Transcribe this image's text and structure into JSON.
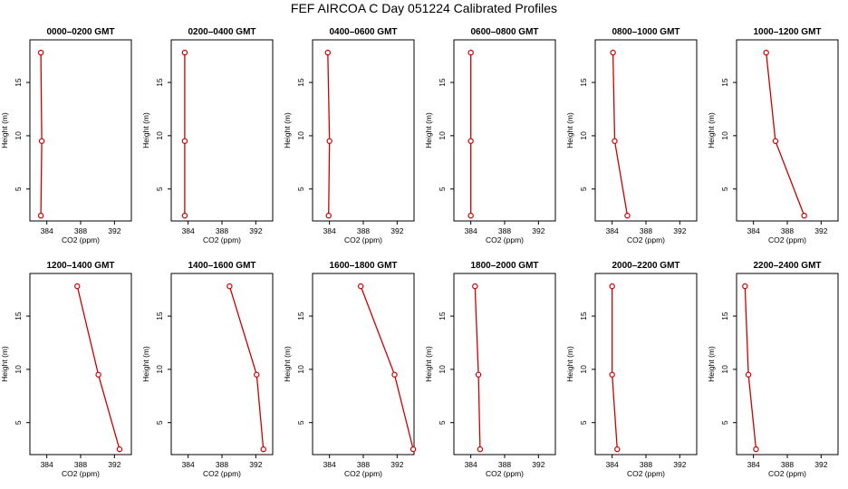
{
  "figure": {
    "title": "FEF AIRCOA C  Day 051224  Calibrated Profiles",
    "colors": {
      "line": "#cc0000",
      "marker": "#cc0000",
      "axis": "#000000"
    }
  },
  "chart_data": [
    {
      "type": "line",
      "title": "0000–0200 GMT",
      "xlabel": "CO2 (ppm)",
      "ylabel": "Height (m)",
      "xlim": [
        382,
        394
      ],
      "ylim": [
        2,
        19
      ],
      "xticks": [
        384,
        388,
        392
      ],
      "yticks": [
        5,
        10,
        15
      ],
      "x": [
        383.3,
        383.4,
        383.3
      ],
      "y": [
        17.8,
        9.5,
        2.5
      ]
    },
    {
      "type": "line",
      "title": "0200–0400 GMT",
      "xlabel": "CO2 (ppm)",
      "ylabel": "Height (m)",
      "xlim": [
        382,
        394
      ],
      "ylim": [
        2,
        19
      ],
      "xticks": [
        384,
        388,
        392
      ],
      "yticks": [
        5,
        10,
        15
      ],
      "x": [
        383.6,
        383.6,
        383.6
      ],
      "y": [
        17.8,
        9.5,
        2.5
      ]
    },
    {
      "type": "line",
      "title": "0400–0600 GMT",
      "xlabel": "CO2 (ppm)",
      "ylabel": "Height (m)",
      "xlim": [
        382,
        394
      ],
      "ylim": [
        2,
        19
      ],
      "xticks": [
        384,
        388,
        392
      ],
      "yticks": [
        5,
        10,
        15
      ],
      "x": [
        383.8,
        384.0,
        383.9
      ],
      "y": [
        17.8,
        9.5,
        2.5
      ]
    },
    {
      "type": "line",
      "title": "0600–0800 GMT",
      "xlabel": "CO2 (ppm)",
      "ylabel": "Height (m)",
      "xlim": [
        382,
        394
      ],
      "ylim": [
        2,
        19
      ],
      "xticks": [
        384,
        388,
        392
      ],
      "yticks": [
        5,
        10,
        15
      ],
      "x": [
        384.0,
        384.0,
        384.0
      ],
      "y": [
        17.8,
        9.5,
        2.5
      ]
    },
    {
      "type": "line",
      "title": "0800–1000 GMT",
      "xlabel": "CO2 (ppm)",
      "ylabel": "Height (m)",
      "xlim": [
        382,
        394
      ],
      "ylim": [
        2,
        19
      ],
      "xticks": [
        384,
        388,
        392
      ],
      "yticks": [
        5,
        10,
        15
      ],
      "x": [
        384.1,
        384.3,
        385.8
      ],
      "y": [
        17.8,
        9.5,
        2.5
      ]
    },
    {
      "type": "line",
      "title": "1000–1200 GMT",
      "xlabel": "CO2 (ppm)",
      "ylabel": "Height (m)",
      "xlim": [
        382,
        394
      ],
      "ylim": [
        2,
        19
      ],
      "xticks": [
        384,
        388,
        392
      ],
      "yticks": [
        5,
        10,
        15
      ],
      "x": [
        385.5,
        386.6,
        390.0
      ],
      "y": [
        17.8,
        9.5,
        2.5
      ]
    },
    {
      "type": "line",
      "title": "1200–1400 GMT",
      "xlabel": "CO2 (ppm)",
      "ylabel": "Height (m)",
      "xlim": [
        382,
        394
      ],
      "ylim": [
        2,
        19
      ],
      "xticks": [
        384,
        388,
        392
      ],
      "yticks": [
        5,
        10,
        15
      ],
      "x": [
        387.6,
        390.1,
        392.6
      ],
      "y": [
        17.8,
        9.5,
        2.5
      ]
    },
    {
      "type": "line",
      "title": "1400–1600 GMT",
      "xlabel": "CO2 (ppm)",
      "ylabel": "Height (m)",
      "xlim": [
        382,
        394
      ],
      "ylim": [
        2,
        19
      ],
      "xticks": [
        384,
        388,
        392
      ],
      "yticks": [
        5,
        10,
        15
      ],
      "x": [
        388.9,
        392.1,
        392.9
      ],
      "y": [
        17.8,
        9.5,
        2.5
      ]
    },
    {
      "type": "line",
      "title": "1600–1800 GMT",
      "xlabel": "CO2 (ppm)",
      "ylabel": "Height (m)",
      "xlim": [
        382,
        394
      ],
      "ylim": [
        2,
        19
      ],
      "xticks": [
        384,
        388,
        392
      ],
      "yticks": [
        5,
        10,
        15
      ],
      "x": [
        387.7,
        391.7,
        393.9
      ],
      "y": [
        17.8,
        9.5,
        2.5
      ]
    },
    {
      "type": "line",
      "title": "1800–2000 GMT",
      "xlabel": "CO2 (ppm)",
      "ylabel": "Height (m)",
      "xlim": [
        382,
        394
      ],
      "ylim": [
        2,
        19
      ],
      "xticks": [
        384,
        388,
        392
      ],
      "yticks": [
        5,
        10,
        15
      ],
      "x": [
        384.5,
        384.9,
        385.1
      ],
      "y": [
        17.8,
        9.5,
        2.5
      ]
    },
    {
      "type": "line",
      "title": "2000–2200 GMT",
      "xlabel": "CO2 (ppm)",
      "ylabel": "Height (m)",
      "xlim": [
        382,
        394
      ],
      "ylim": [
        2,
        19
      ],
      "xticks": [
        384,
        388,
        392
      ],
      "yticks": [
        5,
        10,
        15
      ],
      "x": [
        384.0,
        384.0,
        384.6
      ],
      "y": [
        17.8,
        9.5,
        2.5
      ]
    },
    {
      "type": "line",
      "title": "2200–2400 GMT",
      "xlabel": "CO2 (ppm)",
      "ylabel": "Height (m)",
      "xlim": [
        382,
        394
      ],
      "ylim": [
        2,
        19
      ],
      "xticks": [
        384,
        388,
        392
      ],
      "yticks": [
        5,
        10,
        15
      ],
      "x": [
        383.0,
        383.4,
        384.3
      ],
      "y": [
        17.8,
        9.5,
        2.5
      ]
    }
  ]
}
